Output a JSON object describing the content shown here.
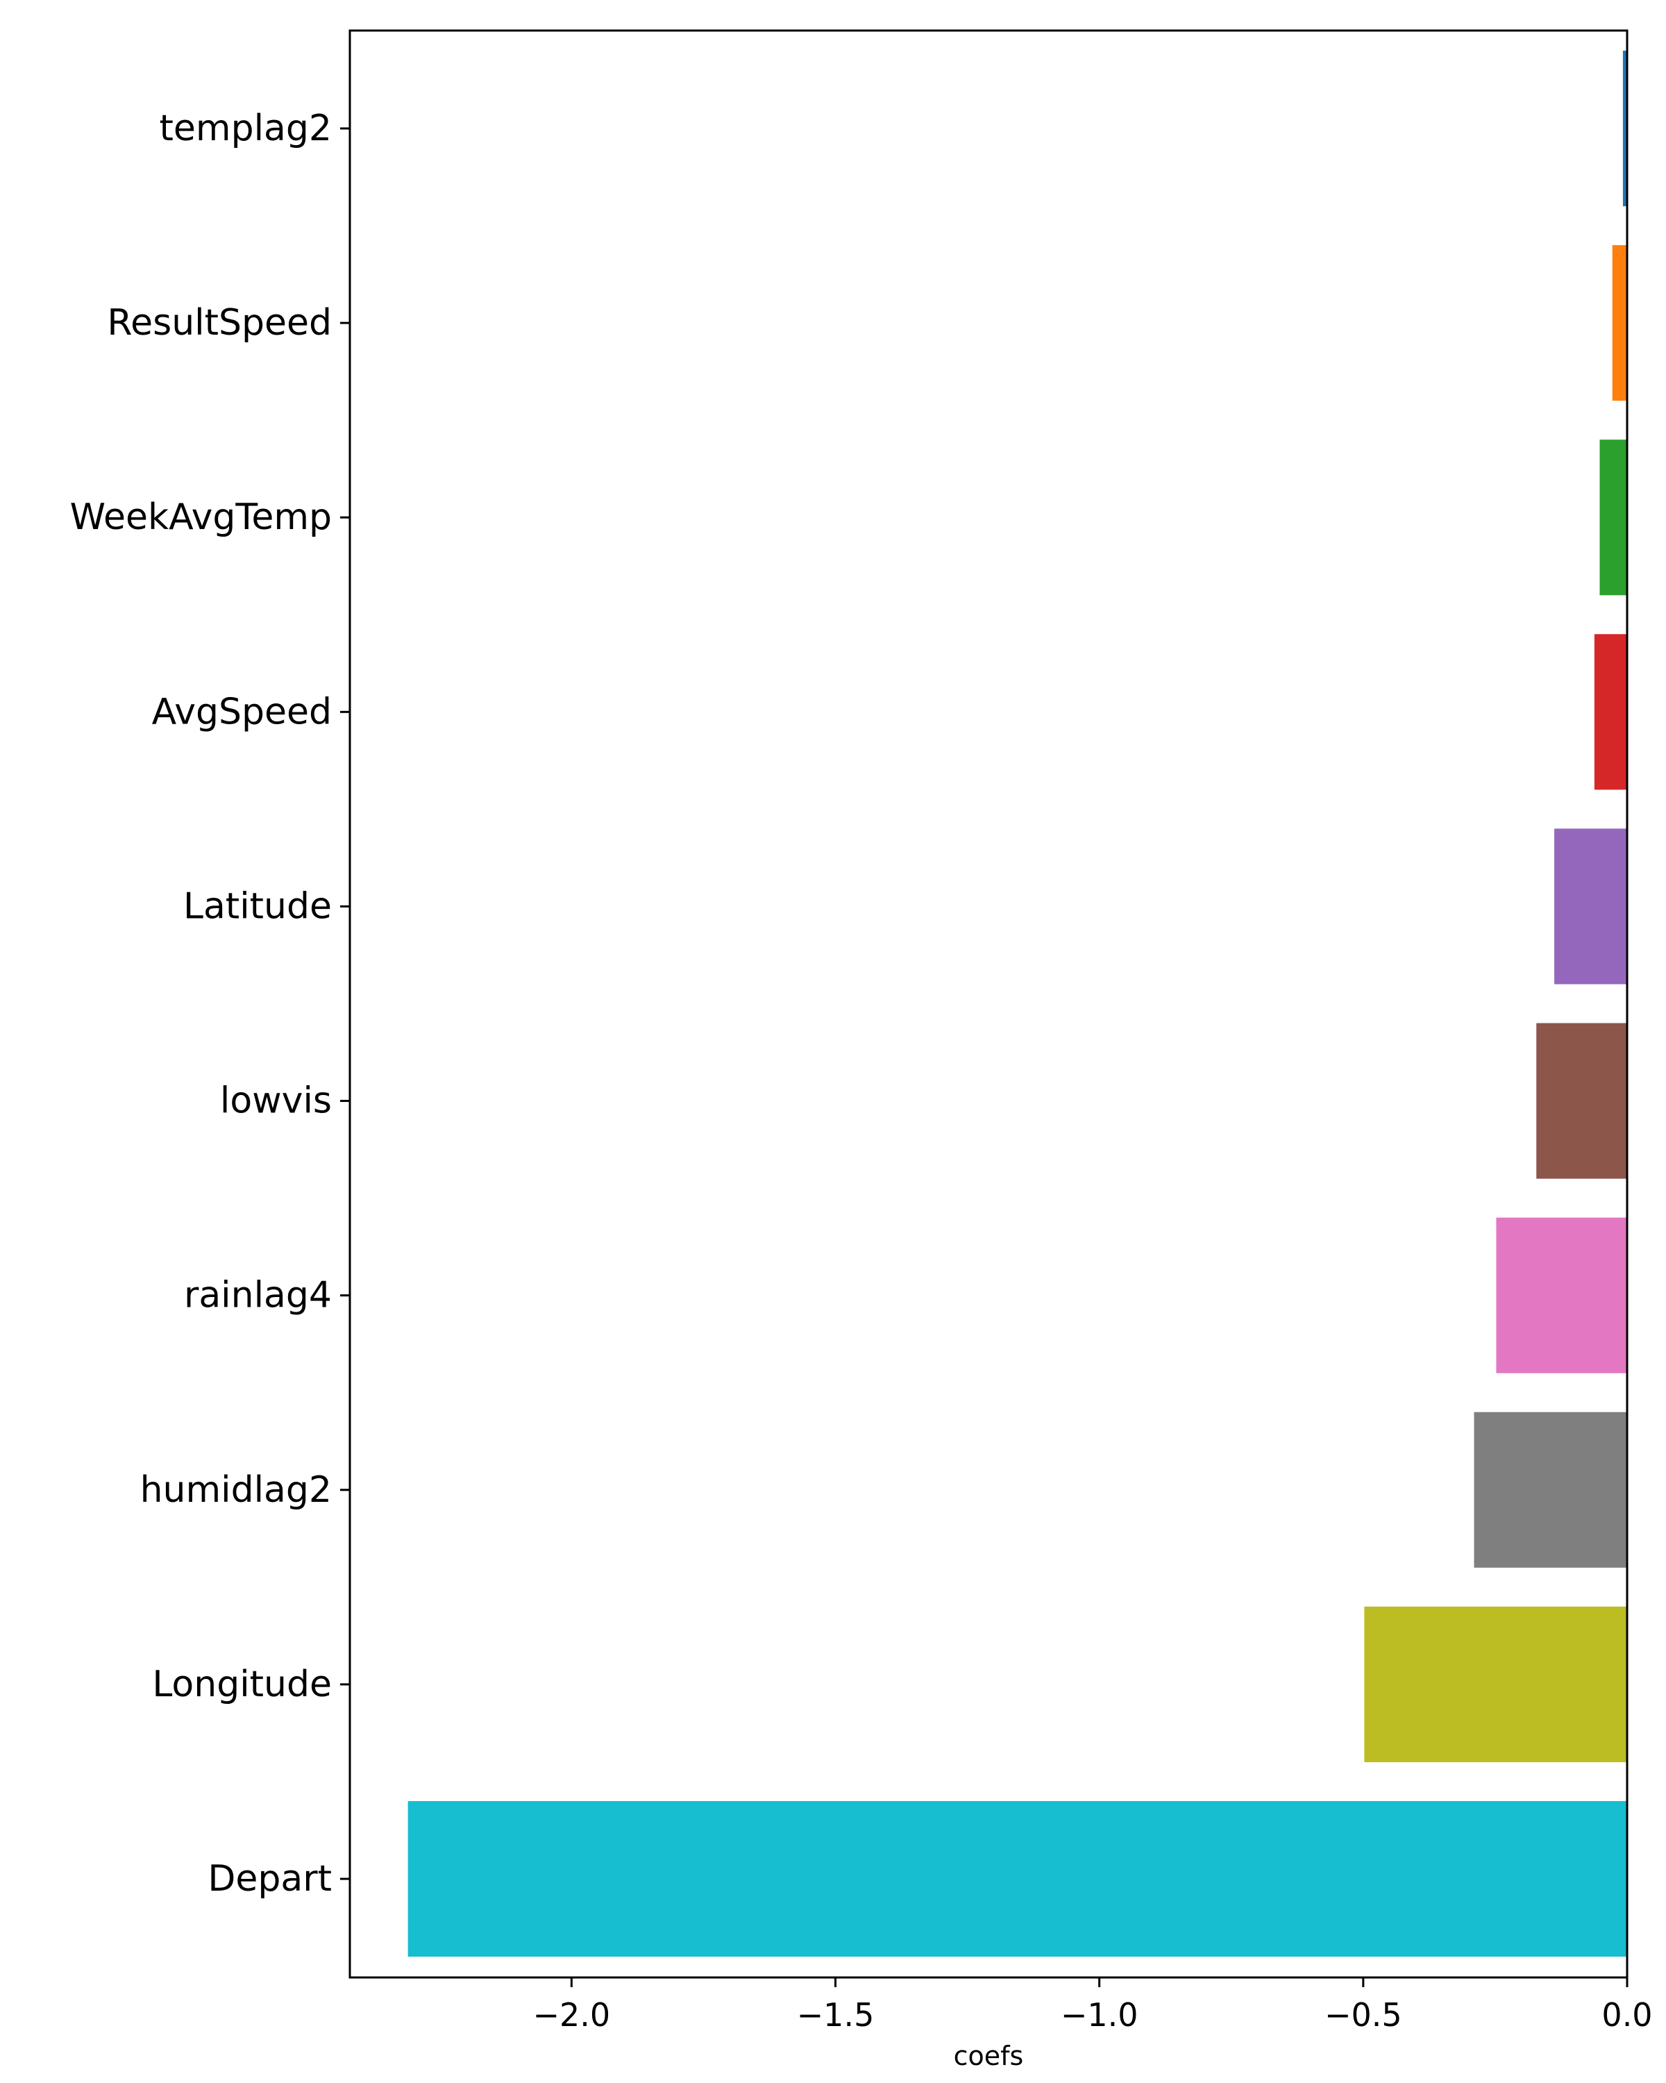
{
  "chart_data": {
    "type": "bar",
    "orientation": "horizontal",
    "categories": [
      "templag2",
      "ResultSpeed",
      "WeekAvgTemp",
      "AvgSpeed",
      "Latitude",
      "lowvis",
      "rainlag4",
      "humidlag2",
      "Longitude",
      "Depart"
    ],
    "values": [
      -0.008,
      -0.028,
      -0.052,
      -0.062,
      -0.138,
      -0.172,
      -0.248,
      -0.29,
      -0.498,
      -2.31
    ],
    "colors": [
      "#1f77b4",
      "#ff7f0e",
      "#2ca02c",
      "#d62728",
      "#9467bd",
      "#8c564b",
      "#e377c2",
      "#7f7f7f",
      "#bcbd22",
      "#17becf"
    ],
    "xlabel": "coefs",
    "ylabel": "",
    "xlim": [
      -2.42,
      0.0
    ],
    "xticks": [
      -2.0,
      -1.5,
      -1.0,
      -0.5,
      0.0
    ],
    "xtick_labels": [
      "−2.0",
      "−1.5",
      "−1.0",
      "−0.5",
      "0.0"
    ],
    "grid": false,
    "legend": false
  }
}
